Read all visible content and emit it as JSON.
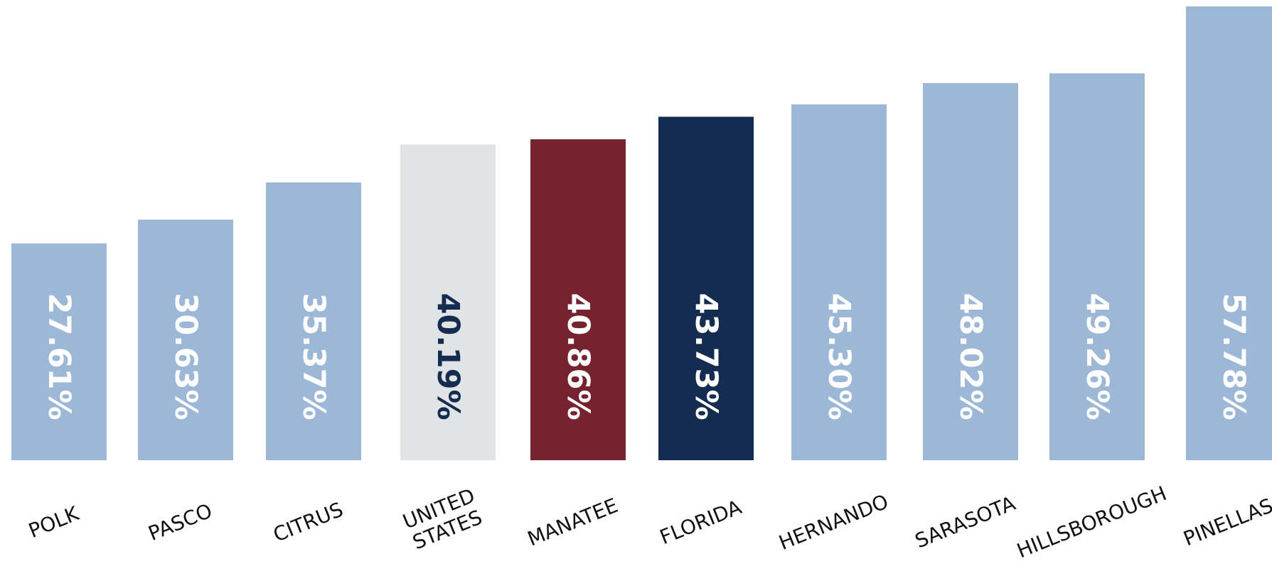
{
  "chart_data": {
    "type": "bar",
    "title": "",
    "xlabel": "",
    "ylabel": "",
    "categories": [
      "POLK",
      "PASCO",
      "CITRUS",
      "UNITED STATES",
      "MANATEE",
      "FLORIDA",
      "HERNANDO",
      "SARASOTA",
      "HILLSBOROUGH",
      "PINELLAS"
    ],
    "category_lines": [
      [
        "POLK"
      ],
      [
        "PASCO"
      ],
      [
        "CITRUS"
      ],
      [
        "UNITED",
        "STATES"
      ],
      [
        "MANATEE"
      ],
      [
        "FLORIDA"
      ],
      [
        "HERNANDO"
      ],
      [
        "SARASOTA"
      ],
      [
        "HILLSBOROUGH"
      ],
      [
        "PINELLAS"
      ]
    ],
    "values": [
      27.61,
      30.63,
      35.37,
      40.19,
      40.86,
      43.73,
      45.3,
      48.02,
      49.26,
      57.78
    ],
    "value_labels": [
      "27.61%",
      "30.63%",
      "35.37%",
      "40.19%",
      "40.86%",
      "43.73%",
      "45.30%",
      "48.02%",
      "49.26%",
      "57.78%"
    ],
    "bar_colors": [
      "#9db8d7",
      "#9db8d7",
      "#9db8d7",
      "#e2e3e5",
      "#76222f",
      "#142c50",
      "#9db8d7",
      "#9db8d7",
      "#9db8d7",
      "#9db8d7"
    ],
    "label_colors": [
      "#ffffff",
      "#ffffff",
      "#ffffff",
      "#142c50",
      "#ffffff",
      "#ffffff",
      "#ffffff",
      "#ffffff",
      "#ffffff",
      "#ffffff"
    ],
    "ylim": [
      0,
      57.78
    ],
    "grid": false,
    "legend": "none"
  }
}
